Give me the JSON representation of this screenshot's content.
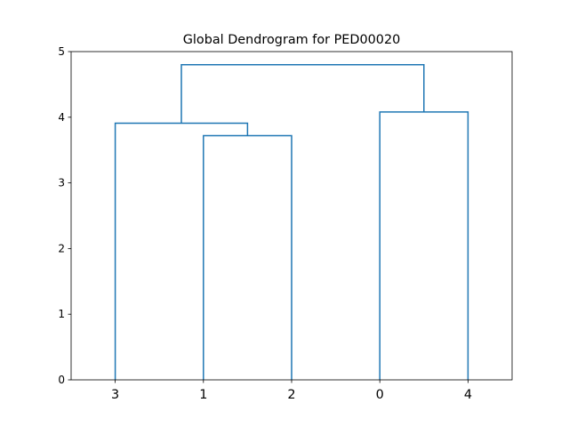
{
  "chart_data": {
    "type": "dendrogram",
    "title": "Global Dendrogram for PED00020",
    "xlabel": "",
    "ylabel": "",
    "ylim": [
      0,
      5
    ],
    "yticks": [
      "0",
      "1",
      "2",
      "3",
      "4",
      "5"
    ],
    "leaf_labels": [
      "3",
      "1",
      "2",
      "0",
      "4"
    ],
    "merges": [
      {
        "left": "1",
        "right": "2",
        "height": 3.72
      },
      {
        "left": "3",
        "right": "(1,2)",
        "height": 3.91
      },
      {
        "left": "0",
        "right": "4",
        "height": 4.08
      },
      {
        "left": "(3,(1,2))",
        "right": "(0,4)",
        "height": 4.8
      }
    ],
    "link_color": "#1f77b4",
    "grid": false
  }
}
